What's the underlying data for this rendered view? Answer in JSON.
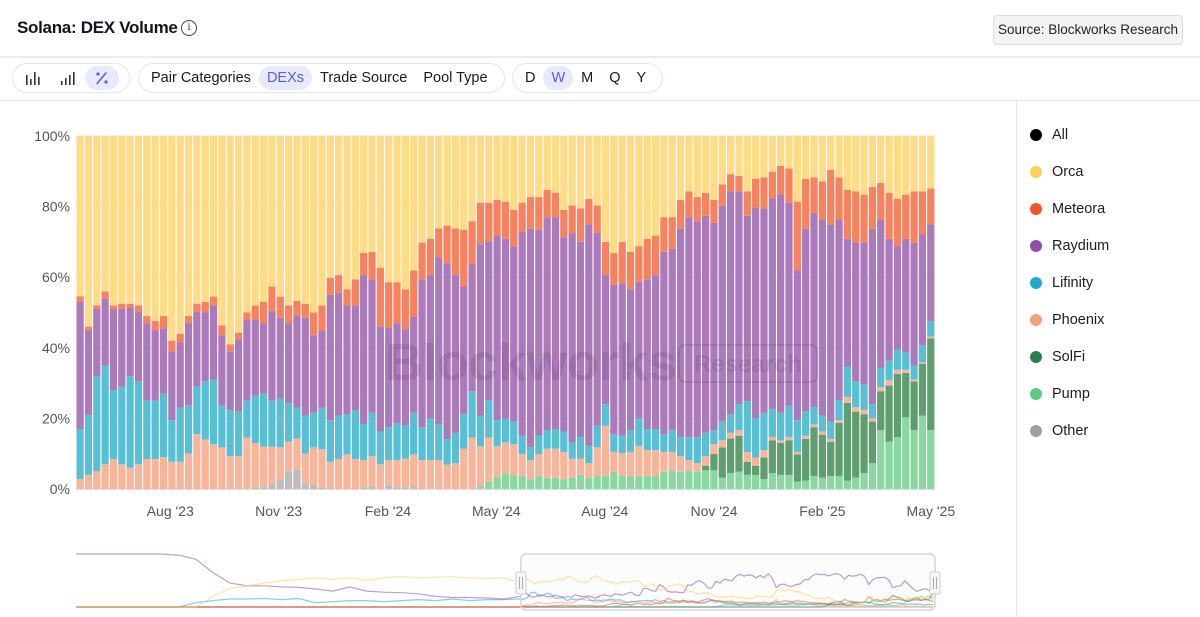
{
  "header": {
    "title": "Solana: DEX Volume",
    "info_icon": "info-circle-icon",
    "source_button": "Source: Blockworks Research"
  },
  "toolbar": {
    "chart_types": [
      {
        "icon": "bar-chart-icon",
        "glyph": "ılıl"
      },
      {
        "icon": "bar-ascending-icon",
        "glyph": ".ıl"
      },
      {
        "icon": "percent-icon",
        "glyph": "⁒",
        "active": true
      }
    ],
    "categories": [
      {
        "label": "Pair Categories"
      },
      {
        "label": "DEXs",
        "active": true
      },
      {
        "label": "Trade Source"
      },
      {
        "label": "Pool Type"
      }
    ],
    "intervals": [
      {
        "label": "D"
      },
      {
        "label": "W",
        "active": true
      },
      {
        "label": "M"
      },
      {
        "label": "Q"
      },
      {
        "label": "Y"
      }
    ]
  },
  "legend": [
    {
      "label": "All",
      "color": "#000000"
    },
    {
      "label": "Orca",
      "color": "#fdd05a"
    },
    {
      "label": "Meteora",
      "color": "#f5532d"
    },
    {
      "label": "Raydium",
      "color": "#8e4fa8"
    },
    {
      "label": "Lifinity",
      "color": "#1ea9cf"
    },
    {
      "label": "Phoenix",
      "color": "#f59e7b"
    },
    {
      "label": "SolFi",
      "color": "#2e7d4f"
    },
    {
      "label": "Pump",
      "color": "#5ccb85"
    },
    {
      "label": "Other",
      "color": "#a0a0a0"
    }
  ],
  "watermark": {
    "brand": "Blockworks",
    "tag": "Research"
  },
  "chart_data": {
    "type": "bar",
    "stacked": "percent",
    "title": "Solana: DEX Volume",
    "interval": "weekly",
    "bar_count": 103,
    "ylim": [
      0,
      100
    ],
    "y_ticks": [
      "0%",
      "20%",
      "40%",
      "60%",
      "80%",
      "100%"
    ],
    "y_tick_values": [
      0,
      20,
      40,
      60,
      80,
      100
    ],
    "x_ticks": [
      {
        "label": "Aug '23",
        "bar": 10.8
      },
      {
        "label": "Nov '23",
        "bar": 23.8
      },
      {
        "label": "Feb '24",
        "bar": 36.9
      },
      {
        "label": "May '24",
        "bar": 49.9
      },
      {
        "label": "Aug '24",
        "bar": 62.9
      },
      {
        "label": "Nov '24",
        "bar": 76
      },
      {
        "label": "Feb '25",
        "bar": 89
      },
      {
        "label": "May '25",
        "bar": 102
      }
    ],
    "grid": true,
    "series": [
      {
        "name": "Pump",
        "fill": "#89d8a2",
        "values": [
          0,
          0,
          0,
          0,
          0,
          0,
          0,
          0,
          0,
          0,
          0,
          0,
          0,
          0,
          0,
          0,
          0,
          0,
          0,
          0,
          0,
          0,
          0,
          0,
          0,
          0,
          0,
          0,
          0,
          0,
          0,
          0,
          0,
          0,
          0,
          0,
          0,
          0,
          0,
          0,
          0,
          0,
          0,
          0,
          0,
          0,
          0,
          0,
          0.7,
          2,
          3.5,
          4.5,
          4,
          3.7,
          2.8,
          3.7,
          3.2,
          3.2,
          2.8,
          3.2,
          4,
          3.2,
          3.7,
          3.7,
          4.9,
          3.7,
          3.7,
          3.7,
          3.7,
          3.7,
          4.9,
          5.3,
          4.9,
          5.3,
          4.9,
          5.3,
          5.3,
          3.2,
          4.5,
          4.9,
          4,
          4,
          2.8,
          4.5,
          4,
          4,
          2.1,
          2.4,
          3.7,
          3.2,
          3.7,
          3.7,
          2.4,
          3.2,
          4.5,
          7.3,
          16.7,
          13.4,
          14.7,
          20.3,
          16.7,
          20.8,
          16.7
        ]
      },
      {
        "name": "SolFi",
        "fill": "#5e9e70",
        "values": [
          0,
          0,
          0,
          0,
          0,
          0,
          0,
          0,
          0,
          0,
          0,
          0,
          0,
          0,
          0,
          0,
          0,
          0,
          0,
          0,
          0,
          0,
          0,
          0,
          0,
          0,
          0,
          0,
          0,
          0,
          0,
          0,
          0,
          0,
          0,
          0,
          0,
          0,
          0,
          0,
          0,
          0,
          0,
          0,
          0,
          0,
          0,
          0,
          0,
          0,
          0,
          0,
          0,
          0,
          0,
          0,
          0,
          0,
          0,
          0,
          0,
          0,
          0,
          0,
          0,
          0,
          0,
          0,
          0,
          0,
          0,
          0,
          0,
          0,
          0,
          1.3,
          4.6,
          8.6,
          9.8,
          10.2,
          3.7,
          2.6,
          6.1,
          9.3,
          9.1,
          9.8,
          7.7,
          11.8,
          13.8,
          12.2,
          9.7,
          15,
          22,
          18.7,
          16.7,
          11.8,
          11,
          15.9,
          17.9,
          12.6,
          13.8,
          14.7,
          26
        ]
      },
      {
        "name": "Other",
        "fill": "#bdbdbd",
        "values": [
          0,
          0,
          0,
          0,
          0,
          0,
          0,
          0,
          0,
          0,
          0,
          0,
          0,
          0,
          0,
          0,
          0,
          0,
          0,
          0,
          0,
          0.5,
          0.5,
          1.5,
          2.5,
          5,
          5.5,
          1.5,
          1,
          0.5,
          0,
          0,
          0,
          0,
          0.5,
          0.7,
          0,
          1,
          0.5,
          0.5,
          0.7,
          0,
          0,
          0,
          0,
          0,
          0,
          0,
          0,
          0,
          0,
          0,
          0,
          0,
          0,
          0,
          0,
          0,
          0,
          0,
          0,
          0,
          0,
          0,
          0,
          0,
          0,
          0,
          0,
          0,
          0,
          0,
          0,
          0,
          0,
          0,
          0,
          0,
          0,
          0,
          0,
          0,
          0,
          0,
          0,
          0,
          0,
          0,
          0,
          0,
          0,
          0,
          0,
          0,
          0,
          0,
          0,
          0,
          0,
          0,
          0,
          0,
          0
        ]
      },
      {
        "name": "Phoenix",
        "fill": "#f8b59a",
        "values": [
          2.8,
          4,
          5,
          7,
          8.5,
          7,
          6,
          7,
          8.5,
          8.5,
          9,
          7.7,
          7.7,
          10,
          15.5,
          14,
          12.7,
          11.8,
          9.3,
          9.3,
          14.6,
          12.5,
          11.5,
          10.5,
          9.3,
          8.4,
          8.8,
          8.5,
          10.8,
          10.8,
          7.7,
          8.5,
          9.8,
          8.5,
          7.7,
          8.6,
          7,
          7.2,
          7.7,
          8.1,
          9.1,
          8.2,
          8.2,
          8.2,
          6.9,
          7.3,
          11.4,
          14.6,
          11.4,
          12.6,
          8.6,
          8.7,
          8.7,
          6.2,
          5.4,
          6.2,
          8.2,
          8.2,
          7.7,
          5.4,
          4.6,
          4.1,
          8.1,
          14.2,
          5.6,
          6.5,
          6.8,
          8.5,
          7.3,
          7.3,
          5.6,
          5.2,
          4.4,
          2.9,
          2.4,
          2.7,
          2.8,
          2,
          1.6,
          1.6,
          2.8,
          2.3,
          2.1,
          0.9,
          0.7,
          0.9,
          0.7,
          0.9,
          0.8,
          0.9,
          0.8,
          0.8,
          1.7,
          1.3,
          1.2,
          0.9,
          1.2,
          1.6,
          1.2,
          0.9,
          0.5,
          0.4,
          0.5
        ]
      },
      {
        "name": "Lifinity",
        "fill": "#58bfd5",
        "values": [
          14.2,
          17,
          27,
          28,
          19.5,
          22,
          26,
          23.5,
          16.5,
          16.5,
          18,
          11.8,
          15.3,
          13.6,
          13.5,
          16.5,
          18.3,
          11.8,
          13.1,
          12.7,
          10.4,
          13.5,
          15,
          13,
          13.8,
          11,
          8.7,
          10.8,
          9.8,
          11.7,
          11.8,
          12.3,
          11.4,
          13.9,
          10.2,
          12.3,
          9.3,
          9.3,
          10.4,
          9.3,
          11.8,
          9.3,
          11.8,
          10.1,
          7.2,
          8.6,
          9.8,
          13.1,
          8.7,
          10.5,
          7.4,
          6.8,
          6.4,
          5.2,
          3.6,
          5.2,
          5.3,
          5.6,
          5.8,
          4.5,
          6.1,
          4.9,
          6.1,
          6.1,
          5,
          4.9,
          6.2,
          7.8,
          6,
          6,
          5,
          6.2,
          5.4,
          6.5,
          7.4,
          6.6,
          4,
          5.3,
          5.3,
          7.3,
          14.4,
          11.1,
          10.6,
          8.1,
          7.8,
          8.9,
          9,
          6.9,
          4.9,
          4.5,
          4.9,
          5.7,
          8.6,
          7.3,
          7.3,
          4,
          5.4,
          5.4,
          5.7,
          4.9,
          4,
          4.9,
          4.4
        ]
      },
      {
        "name": "Raydium",
        "fill": "#ab7aba",
        "values": [
          36,
          24,
          19,
          19,
          23,
          22,
          19.5,
          19.5,
          22,
          20,
          18.5,
          19.5,
          18.5,
          23.4,
          21,
          19.5,
          21,
          19.9,
          16.6,
          20.4,
          23,
          21.5,
          20,
          25.5,
          22.9,
          22.6,
          26,
          27.7,
          21.9,
          22,
          35.5,
          34.7,
          30.8,
          29.6,
          42.2,
          37.8,
          29.7,
          28.1,
          28.4,
          27.3,
          27.3,
          41.9,
          40.6,
          47.3,
          49.8,
          44.7,
          36.2,
          35.9,
          48.5,
          45,
          52.3,
          50.9,
          49.7,
          57.9,
          61.9,
          58.3,
          60.3,
          60,
          55,
          59.4,
          55.3,
          62.8,
          54.6,
          36.6,
          42.3,
          43.2,
          39.9,
          38.7,
          42.4,
          43.6,
          51.7,
          51.4,
          59,
          62.3,
          61.1,
          61.5,
          58.7,
          61.1,
          63.1,
          60.3,
          52.5,
          59.8,
          57.9,
          59.5,
          61.8,
          57.5,
          42.4,
          51.7,
          55,
          55.4,
          55.9,
          51,
          36.2,
          39.2,
          40,
          49.7,
          41.9,
          34.6,
          29.3,
          32.2,
          34.7,
          31.3,
          27.4
        ]
      },
      {
        "name": "Meteora",
        "fill": "#f6825f",
        "values": [
          1.6,
          1,
          1,
          2,
          1,
          1.5,
          1,
          2,
          2,
          2.6,
          3.5,
          3,
          2.5,
          2,
          2.5,
          3,
          2.5,
          2.9,
          2,
          1.9,
          2,
          4,
          6,
          6.9,
          6,
          5,
          4.3,
          4,
          6.5,
          7,
          4.8,
          5.1,
          4.6,
          7.4,
          6.3,
          7.8,
          16.7,
          13,
          11.6,
          11.4,
          13,
          10.4,
          10.3,
          8.2,
          10.7,
          13.2,
          16,
          12.2,
          11.8,
          11,
          10.1,
          10.5,
          10.3,
          8.1,
          9,
          9.3,
          7.7,
          6.9,
          7.8,
          7.8,
          9.5,
          7.2,
          7.8,
          9.4,
          9.1,
          11.7,
          10.6,
          10.1,
          11.5,
          11.2,
          9.8,
          8.9,
          8.2,
          7.3,
          6.9,
          6.5,
          6.5,
          6.1,
          4.9,
          4.4,
          6.9,
          8.1,
          8.8,
          7.6,
          8.1,
          9.7,
          19.5,
          14.2,
          10.1,
          10.9,
          15.4,
          12.1,
          13.8,
          14.6,
          13.7,
          11.9,
          10.5,
          13,
          13.4,
          12.5,
          14.6,
          12.2,
          10.1
        ]
      },
      {
        "name": "Orca",
        "fill": "#fedb87",
        "values": [
          45.4,
          54,
          48,
          44,
          48,
          47.5,
          47.5,
          48,
          51,
          52.4,
          51,
          58,
          56,
          51,
          47.5,
          47,
          45.5,
          53.6,
          59,
          55.7,
          50,
          48,
          47,
          42.6,
          45.5,
          48,
          46.7,
          47.5,
          50,
          48,
          40.2,
          39.4,
          43.4,
          40.6,
          33.1,
          32.8,
          37.3,
          41.4,
          41.4,
          43.4,
          38.1,
          30.2,
          29.1,
          26.2,
          25.4,
          26.2,
          26.6,
          24.2,
          18.9,
          18.9,
          18.1,
          18.6,
          20.9,
          18.9,
          17.3,
          17.3,
          15.3,
          16.1,
          20.9,
          19.7,
          20.5,
          17.8,
          19.7,
          30,
          33.1,
          30,
          32.8,
          31.2,
          29.1,
          28.2,
          23,
          23,
          18.1,
          15.7,
          17.3,
          16.1,
          18.1,
          13.7,
          10.8,
          11.3,
          15.7,
          12.1,
          11.7,
          10.1,
          8.5,
          9.2,
          18.6,
          12.1,
          11.7,
          12.9,
          9.6,
          11.7,
          15.3,
          15.7,
          16.6,
          14.4,
          13.3,
          16.1,
          17.8,
          16.6,
          15.7,
          15.7,
          14.9
        ]
      }
    ],
    "navigator": {
      "selection_start_fraction": 0.518,
      "history_before_selection": [
        {
          "name": "Raydium",
          "values": [
            100,
            100,
            100,
            100,
            100,
            100,
            98,
            90,
            65,
            45,
            40,
            40,
            38,
            37,
            34,
            30,
            38,
            30,
            28,
            27,
            25,
            20,
            18,
            18,
            17,
            15,
            20
          ]
        },
        {
          "name": "Orca",
          "values": [
            0,
            0,
            0,
            0,
            0,
            0,
            0,
            0,
            20,
            35,
            40,
            45,
            50,
            52,
            55,
            52,
            55,
            50,
            55,
            58,
            55,
            56,
            57,
            55,
            54,
            55,
            45
          ]
        },
        {
          "name": "Lifinity",
          "values": [
            0,
            0,
            0,
            0,
            0,
            0,
            0,
            8,
            12,
            15,
            15,
            16,
            14,
            16,
            8,
            10,
            12,
            12,
            10,
            12,
            14,
            12,
            15,
            12,
            14,
            14,
            15
          ]
        }
      ]
    }
  }
}
